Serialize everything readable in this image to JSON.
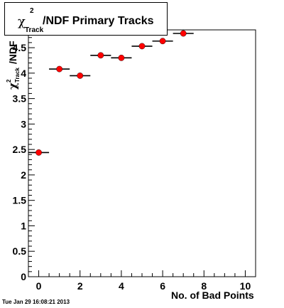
{
  "title": {
    "chi": "χ",
    "superscript": "2",
    "subscript": "Track",
    "text": "/NDF Primary Tracks"
  },
  "timestamp": "Tue Jan 29 16:08:21 2013",
  "chart_data": {
    "type": "scatter",
    "title": "χ²Track/NDF Primary Tracks",
    "xlabel": "No. of Bad Points",
    "ylabel": "χ²Track/NDF",
    "xlim": [
      -0.5,
      10.5
    ],
    "ylim": [
      0,
      4.85
    ],
    "xticks": [
      0,
      2,
      4,
      6,
      8,
      10
    ],
    "yticks": [
      0,
      0.5,
      1,
      1.5,
      2,
      2.5,
      3,
      3.5,
      4,
      4.5
    ],
    "ytick_labels": [
      "0",
      "0.5",
      "1",
      "1.5",
      "2",
      "2.5",
      "3",
      "3.5",
      "4",
      "4.5"
    ],
    "grid": false,
    "marker_color": "#ff0000",
    "points": [
      {
        "x": 0,
        "y": 2.44,
        "yerr": 0.05
      },
      {
        "x": 1,
        "y": 4.08,
        "yerr": 0.02
      },
      {
        "x": 2,
        "y": 3.95,
        "yerr": 0.04
      },
      {
        "x": 3,
        "y": 4.35,
        "yerr": 0.02
      },
      {
        "x": 4,
        "y": 4.3,
        "yerr": 0.01
      },
      {
        "x": 5,
        "y": 4.53,
        "yerr": 0.01
      },
      {
        "x": 6,
        "y": 4.63,
        "yerr": 0.01
      },
      {
        "x": 7,
        "y": 4.78,
        "yerr": 0.01
      }
    ],
    "x_half_width": 0.5
  }
}
